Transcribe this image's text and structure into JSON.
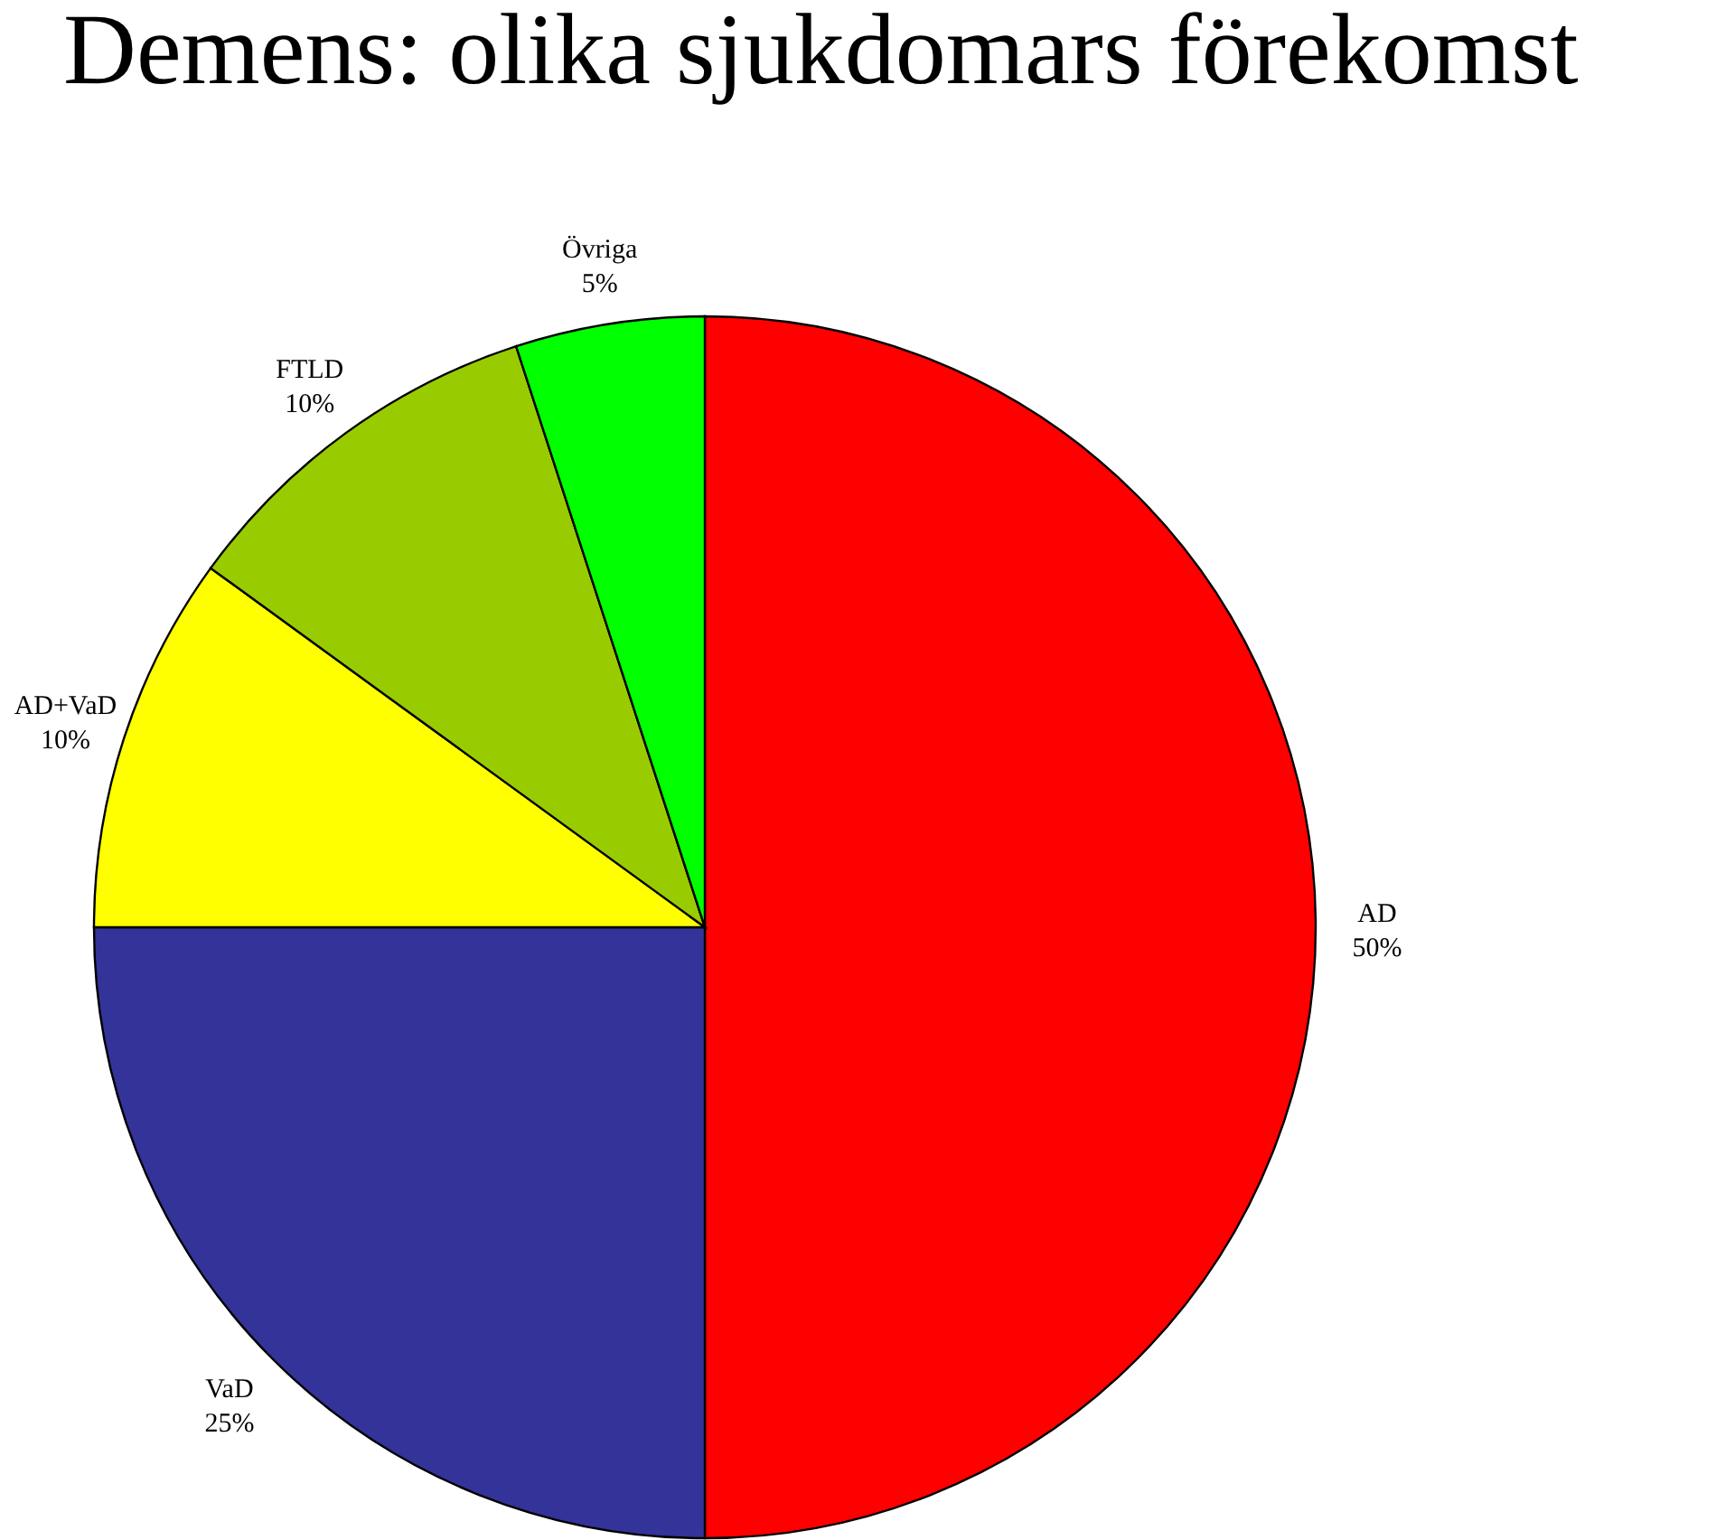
{
  "chart_data": {
    "type": "pie",
    "title": "Demens: olika sjukdomars förekomst",
    "categories": [
      "AD",
      "VaD",
      "AD+VaD",
      "FTLD",
      "Övriga"
    ],
    "values": [
      50,
      25,
      10,
      10,
      5
    ],
    "value_labels": [
      "50%",
      "25%",
      "10%",
      "10%",
      "5%"
    ],
    "colors": [
      "#ff0000",
      "#333399",
      "#ffff00",
      "#99cc00",
      "#00ff00"
    ]
  }
}
